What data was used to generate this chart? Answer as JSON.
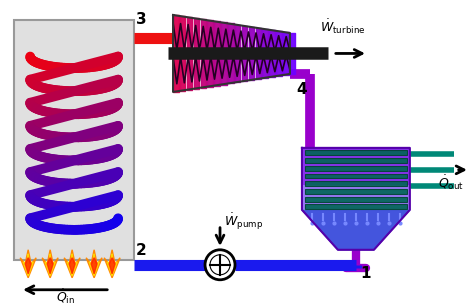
{
  "bg_color": "#ffffff",
  "pipe_blue": "#1a1aee",
  "pipe_red": "#ee1111",
  "pipe_purple": "#9900cc",
  "pipe_lw": 6,
  "boiler_fill": "#e0e0e0",
  "boiler_border": "#999999",
  "condenser_top_color": "#8833ee",
  "condenser_bot_color": "#4455dd",
  "condenser_light": "#aabbff",
  "teal": "#008877",
  "label_fontsize": 11,
  "annot_fontsize": 9,
  "arrow_lw": 1.8
}
